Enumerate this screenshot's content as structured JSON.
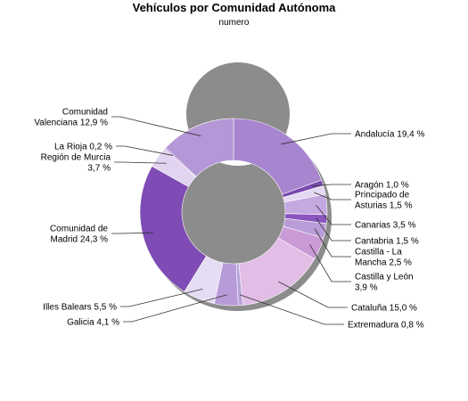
{
  "chart_data": {
    "type": "pie",
    "donut": true,
    "title": "Vehículos por Comunidad Autónoma",
    "subtitle": "numero",
    "slices": [
      {
        "name": "Andalucía",
        "value": 19.4,
        "label": [
          "Andalucía 19,4 %"
        ],
        "color": "#a785cf"
      },
      {
        "name": "Aragón",
        "value": 1.0,
        "label": [
          "Aragón 1,0 %"
        ],
        "color": "#7a4aaf"
      },
      {
        "name": "Principado de Asturias",
        "value": 1.5,
        "label": [
          "Principado de",
          "Asturias 1,5 %"
        ],
        "color": "#e5d8f2"
      },
      {
        "name": "Canarias",
        "value": 3.5,
        "label": [
          "Canarias 3,5 %"
        ],
        "color": "#c4a8e0"
      },
      {
        "name": "Cantabria",
        "value": 1.5,
        "label": [
          "Cantabria 1,5 %"
        ],
        "color": "#8a55bf"
      },
      {
        "name": "Castilla - La Mancha",
        "value": 2.5,
        "label": [
          "Castilla - La",
          "Mancha 2,5 %"
        ],
        "color": "#b89cd8"
      },
      {
        "name": "Castilla y León",
        "value": 3.9,
        "label": [
          "Castilla y León",
          "3,9 %"
        ],
        "color": "#c99ad6"
      },
      {
        "name": "Cataluña",
        "value": 15.0,
        "label": [
          "Cataluña 15,0 %"
        ],
        "color": "#e2bde6"
      },
      {
        "name": "Extremadura",
        "value": 0.8,
        "label": [
          "Extremadura 0,8 %"
        ],
        "color": "#b7a2d8"
      },
      {
        "name": "Galicia",
        "value": 4.1,
        "label": [
          "Galicia 4,1 %"
        ],
        "color": "#b79ad8"
      },
      {
        "name": "Illes Balears",
        "value": 5.5,
        "label": [
          "Illes Balears 5,5 %"
        ],
        "color": "#e5ddf3"
      },
      {
        "name": "Comunidad de Madrid",
        "value": 24.3,
        "label": [
          "Comunidad de",
          "Madrid 24,3 %"
        ],
        "color": "#7e4cb4"
      },
      {
        "name": "Región de Murcia",
        "value": 3.7,
        "label": [
          "Región de Murcia",
          "3,7 %"
        ],
        "color": "#e2d4f0"
      },
      {
        "name": "La Rioja",
        "value": 0.2,
        "label": [
          "La Rioja 0,2 %"
        ],
        "color": "#8d5cc0"
      },
      {
        "name": "Comunidad Valenciana",
        "value": 12.9,
        "label": [
          "Comunidad",
          "Valenciana 12,9 %"
        ],
        "color": "#b497d6"
      }
    ]
  }
}
